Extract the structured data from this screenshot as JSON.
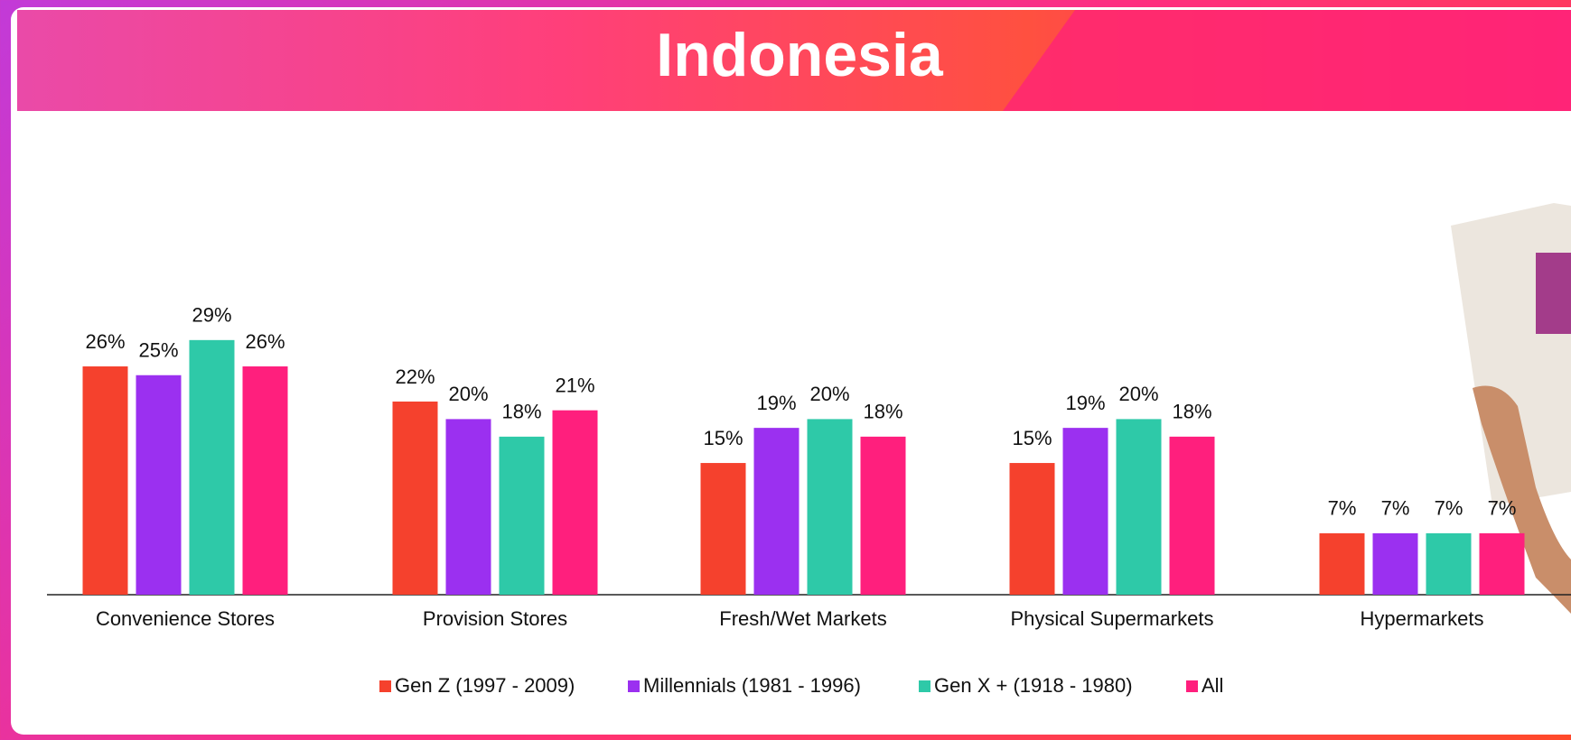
{
  "chart_data": {
    "type": "bar",
    "title": "Indonesia",
    "categories": [
      "Convenience Stores",
      "Provision Stores",
      "Fresh/Wet Markets",
      "Physical Supermarkets",
      "Hypermarkets"
    ],
    "series": [
      {
        "name": "Gen Z (1997 - 2009)",
        "color": "#f5412d",
        "values": [
          26,
          22,
          15,
          15,
          7
        ],
        "value_labels": [
          "26%",
          "22%",
          "15%",
          "15%",
          "7%"
        ]
      },
      {
        "name": "Millennials (1981 - 1996)",
        "color": "#9b30f0",
        "values": [
          25,
          20,
          19,
          19,
          7
        ],
        "value_labels": [
          "25%",
          "20%",
          "19%",
          "19%",
          "7%"
        ]
      },
      {
        "name": "Gen X + (1918 - 1980)",
        "color": "#2ec9a8",
        "values": [
          29,
          18,
          20,
          20,
          7
        ],
        "value_labels": [
          "29%",
          "18%",
          "20%",
          "20%",
          "7%"
        ]
      },
      {
        "name": "All",
        "color": "#ff1f7d",
        "values": [
          26,
          21,
          18,
          18,
          7
        ],
        "value_labels": [
          "26%",
          "21%",
          "18%",
          "18%",
          "7%"
        ]
      }
    ],
    "legend": "bottom"
  }
}
